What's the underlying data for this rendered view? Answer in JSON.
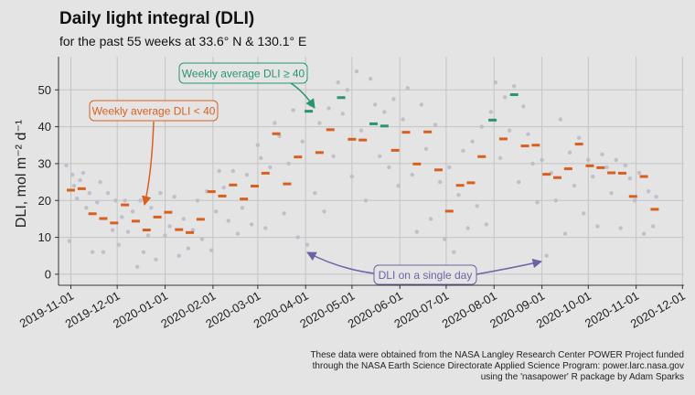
{
  "chart_data": {
    "type": "scatter",
    "title": "Daily light integral (DLI)",
    "subtitle": "for the past 55 weeks at 33.6° N & 130.1° E",
    "ylabel": "DLI, mol m⁻² d⁻¹",
    "xlabel": "",
    "ylim": [
      -3,
      59
    ],
    "y_ticks": [
      0,
      10,
      20,
      30,
      40,
      50
    ],
    "x_range": [
      "2019-10-24",
      "2020-12-02"
    ],
    "x_ticks": [
      "2019-11-01",
      "2019-12-01",
      "2020-01-01",
      "2020-02-01",
      "2020-03-01",
      "2020-04-01",
      "2020-05-01",
      "2020-06-01",
      "2020-07-01",
      "2020-08-01",
      "2020-09-01",
      "2020-10-01",
      "2020-11-01",
      "2020-12-01"
    ],
    "grid": true,
    "threshold": 40,
    "colors": {
      "below": "#d95f1f",
      "above": "#2a9470",
      "points": "#b9b9c9",
      "single_day": "#6b63a5"
    },
    "annotations": {
      "below": "Weekly average DLI < 40",
      "above": "Weekly average DLI ≥ 40",
      "single_day": "DLI on a single day"
    },
    "caption": [
      "These data were obtained from the NASA Langley Research Center POWER Project funded",
      "through the NASA Earth Science Directorate Applied Science Program: power.larc.nasa.gov",
      "using the 'nasapower' R package by Adam Sparks"
    ],
    "weekly_series": {
      "name": "Weekly average DLI",
      "points": [
        {
          "x": "2019-11-01",
          "y": 22.8
        },
        {
          "x": "2019-11-08",
          "y": 23.2
        },
        {
          "x": "2019-11-15",
          "y": 16.4
        },
        {
          "x": "2019-11-22",
          "y": 15.1
        },
        {
          "x": "2019-11-29",
          "y": 13.9
        },
        {
          "x": "2019-12-06",
          "y": 18.8
        },
        {
          "x": "2019-12-13",
          "y": 14.4
        },
        {
          "x": "2019-12-20",
          "y": 12.0
        },
        {
          "x": "2019-12-27",
          "y": 15.5
        },
        {
          "x": "2020-01-03",
          "y": 16.8
        },
        {
          "x": "2020-01-10",
          "y": 12.1
        },
        {
          "x": "2020-01-17",
          "y": 11.3
        },
        {
          "x": "2020-01-24",
          "y": 14.9
        },
        {
          "x": "2020-01-31",
          "y": 22.4
        },
        {
          "x": "2020-02-07",
          "y": 21.2
        },
        {
          "x": "2020-02-14",
          "y": 24.2
        },
        {
          "x": "2020-02-21",
          "y": 20.4
        },
        {
          "x": "2020-02-28",
          "y": 23.9
        },
        {
          "x": "2020-03-06",
          "y": 27.4
        },
        {
          "x": "2020-03-13",
          "y": 38.1
        },
        {
          "x": "2020-03-20",
          "y": 24.5
        },
        {
          "x": "2020-03-27",
          "y": 31.8
        },
        {
          "x": "2020-04-03",
          "y": 44.2
        },
        {
          "x": "2020-04-10",
          "y": 33.0
        },
        {
          "x": "2020-04-17",
          "y": 39.2
        },
        {
          "x": "2020-04-24",
          "y": 47.9
        },
        {
          "x": "2020-05-01",
          "y": 36.6
        },
        {
          "x": "2020-05-08",
          "y": 36.4
        },
        {
          "x": "2020-05-15",
          "y": 40.8
        },
        {
          "x": "2020-05-22",
          "y": 40.2
        },
        {
          "x": "2020-05-29",
          "y": 33.6
        },
        {
          "x": "2020-06-05",
          "y": 38.5
        },
        {
          "x": "2020-06-12",
          "y": 29.9
        },
        {
          "x": "2020-06-19",
          "y": 38.6
        },
        {
          "x": "2020-06-26",
          "y": 28.3
        },
        {
          "x": "2020-07-03",
          "y": 17.1
        },
        {
          "x": "2020-07-10",
          "y": 24.1
        },
        {
          "x": "2020-07-17",
          "y": 24.8
        },
        {
          "x": "2020-07-24",
          "y": 31.9
        },
        {
          "x": "2020-07-31",
          "y": 41.8
        },
        {
          "x": "2020-08-07",
          "y": 36.7
        },
        {
          "x": "2020-08-14",
          "y": 48.7
        },
        {
          "x": "2020-08-21",
          "y": 34.8
        },
        {
          "x": "2020-08-28",
          "y": 35.0
        },
        {
          "x": "2020-09-04",
          "y": 27.1
        },
        {
          "x": "2020-09-11",
          "y": 26.2
        },
        {
          "x": "2020-09-18",
          "y": 28.6
        },
        {
          "x": "2020-09-25",
          "y": 35.3
        },
        {
          "x": "2020-10-02",
          "y": 29.4
        },
        {
          "x": "2020-10-09",
          "y": 28.9
        },
        {
          "x": "2020-10-16",
          "y": 27.5
        },
        {
          "x": "2020-10-23",
          "y": 27.4
        },
        {
          "x": "2020-10-30",
          "y": 21.1
        },
        {
          "x": "2020-11-06",
          "y": 26.5
        },
        {
          "x": "2020-11-13",
          "y": 17.6
        }
      ]
    },
    "daily_series": {
      "name": "DLI on a single day",
      "points": [
        {
          "x": "2019-10-29",
          "y": 29.5
        },
        {
          "x": "2019-10-31",
          "y": 9.0
        },
        {
          "x": "2019-11-02",
          "y": 27.0
        },
        {
          "x": "2019-11-03",
          "y": 24.0
        },
        {
          "x": "2019-11-05",
          "y": 20.5
        },
        {
          "x": "2019-11-07",
          "y": 25.5
        },
        {
          "x": "2019-11-09",
          "y": 27.5
        },
        {
          "x": "2019-11-11",
          "y": 18.0
        },
        {
          "x": "2019-11-13",
          "y": 22.0
        },
        {
          "x": "2019-11-15",
          "y": 6.0
        },
        {
          "x": "2019-11-18",
          "y": 19.5
        },
        {
          "x": "2019-11-20",
          "y": 25.0
        },
        {
          "x": "2019-11-22",
          "y": 6.0
        },
        {
          "x": "2019-11-25",
          "y": 22.0
        },
        {
          "x": "2019-11-28",
          "y": 12.0
        },
        {
          "x": "2019-11-30",
          "y": 20.0
        },
        {
          "x": "2019-12-02",
          "y": 8.0
        },
        {
          "x": "2019-12-04",
          "y": 15.5
        },
        {
          "x": "2019-12-06",
          "y": 20.0
        },
        {
          "x": "2019-12-08",
          "y": 11.5
        },
        {
          "x": "2019-12-11",
          "y": 17.0
        },
        {
          "x": "2019-12-14",
          "y": 2.0
        },
        {
          "x": "2019-12-16",
          "y": 20.0
        },
        {
          "x": "2019-12-18",
          "y": 6.0
        },
        {
          "x": "2019-12-21",
          "y": 10.5
        },
        {
          "x": "2019-12-23",
          "y": 18.0
        },
        {
          "x": "2019-12-26",
          "y": 4.0
        },
        {
          "x": "2019-12-29",
          "y": 22.0
        },
        {
          "x": "2020-01-01",
          "y": 10.5
        },
        {
          "x": "2020-01-04",
          "y": 13.0
        },
        {
          "x": "2020-01-07",
          "y": 21.0
        },
        {
          "x": "2020-01-10",
          "y": 5.0
        },
        {
          "x": "2020-01-13",
          "y": 15.0
        },
        {
          "x": "2020-01-16",
          "y": 7.0
        },
        {
          "x": "2020-01-19",
          "y": 12.0
        },
        {
          "x": "2020-01-22",
          "y": 20.0
        },
        {
          "x": "2020-01-25",
          "y": 9.5
        },
        {
          "x": "2020-01-28",
          "y": 22.5
        },
        {
          "x": "2020-01-31",
          "y": 6.5
        },
        {
          "x": "2020-02-03",
          "y": 17.0
        },
        {
          "x": "2020-02-05",
          "y": 28.0
        },
        {
          "x": "2020-02-08",
          "y": 23.5
        },
        {
          "x": "2020-02-11",
          "y": 14.5
        },
        {
          "x": "2020-02-14",
          "y": 28.0
        },
        {
          "x": "2020-02-17",
          "y": 11.0
        },
        {
          "x": "2020-02-20",
          "y": 18.0
        },
        {
          "x": "2020-02-23",
          "y": 27.0
        },
        {
          "x": "2020-02-26",
          "y": 13.5
        },
        {
          "x": "2020-03-01",
          "y": 35.0
        },
        {
          "x": "2020-03-03",
          "y": 31.5
        },
        {
          "x": "2020-03-06",
          "y": 12.5
        },
        {
          "x": "2020-03-09",
          "y": 29.0
        },
        {
          "x": "2020-03-12",
          "y": 41.0
        },
        {
          "x": "2020-03-15",
          "y": 37.5
        },
        {
          "x": "2020-03-18",
          "y": 16.5
        },
        {
          "x": "2020-03-21",
          "y": 30.0
        },
        {
          "x": "2020-03-24",
          "y": 44.5
        },
        {
          "x": "2020-03-27",
          "y": 10.0
        },
        {
          "x": "2020-03-30",
          "y": 36.0
        },
        {
          "x": "2020-04-02",
          "y": 8.0
        },
        {
          "x": "2020-04-04",
          "y": 46.0
        },
        {
          "x": "2020-04-07",
          "y": 22.0
        },
        {
          "x": "2020-04-10",
          "y": 41.0
        },
        {
          "x": "2020-04-13",
          "y": 17.0
        },
        {
          "x": "2020-04-16",
          "y": 45.0
        },
        {
          "x": "2020-04-19",
          "y": 32.0
        },
        {
          "x": "2020-04-22",
          "y": 52.0
        },
        {
          "x": "2020-04-25",
          "y": 43.5
        },
        {
          "x": "2020-04-28",
          "y": 50.0
        },
        {
          "x": "2020-05-01",
          "y": 26.5
        },
        {
          "x": "2020-05-04",
          "y": 55.0
        },
        {
          "x": "2020-05-07",
          "y": 39.0
        },
        {
          "x": "2020-05-10",
          "y": 20.0
        },
        {
          "x": "2020-05-13",
          "y": 53.0
        },
        {
          "x": "2020-05-16",
          "y": 46.0
        },
        {
          "x": "2020-05-19",
          "y": 32.0
        },
        {
          "x": "2020-05-22",
          "y": 44.0
        },
        {
          "x": "2020-05-25",
          "y": 29.0
        },
        {
          "x": "2020-05-28",
          "y": 47.5
        },
        {
          "x": "2020-05-31",
          "y": 24.0
        },
        {
          "x": "2020-06-03",
          "y": 42.0
        },
        {
          "x": "2020-06-06",
          "y": 50.5
        },
        {
          "x": "2020-06-09",
          "y": 27.0
        },
        {
          "x": "2020-06-12",
          "y": 11.5
        },
        {
          "x": "2020-06-15",
          "y": 46.0
        },
        {
          "x": "2020-06-18",
          "y": 34.0
        },
        {
          "x": "2020-06-21",
          "y": 15.0
        },
        {
          "x": "2020-06-24",
          "y": 40.5
        },
        {
          "x": "2020-06-27",
          "y": 25.0
        },
        {
          "x": "2020-06-30",
          "y": 9.5
        },
        {
          "x": "2020-07-03",
          "y": 29.0
        },
        {
          "x": "2020-07-06",
          "y": 6.0
        },
        {
          "x": "2020-07-09",
          "y": 21.5
        },
        {
          "x": "2020-07-12",
          "y": 33.5
        },
        {
          "x": "2020-07-15",
          "y": 12.5
        },
        {
          "x": "2020-07-18",
          "y": 36.0
        },
        {
          "x": "2020-07-21",
          "y": 18.5
        },
        {
          "x": "2020-07-24",
          "y": 40.0
        },
        {
          "x": "2020-07-27",
          "y": 13.5
        },
        {
          "x": "2020-07-30",
          "y": 44.0
        },
        {
          "x": "2020-08-02",
          "y": 52.0
        },
        {
          "x": "2020-08-05",
          "y": 31.5
        },
        {
          "x": "2020-08-08",
          "y": 48.0
        },
        {
          "x": "2020-08-11",
          "y": 39.0
        },
        {
          "x": "2020-08-14",
          "y": 51.0
        },
        {
          "x": "2020-08-17",
          "y": 25.0
        },
        {
          "x": "2020-08-20",
          "y": 45.5
        },
        {
          "x": "2020-08-23",
          "y": 38.0
        },
        {
          "x": "2020-08-26",
          "y": 30.0
        },
        {
          "x": "2020-08-29",
          "y": 19.5
        },
        {
          "x": "2020-09-01",
          "y": 31.0
        },
        {
          "x": "2020-09-04",
          "y": 5.0
        },
        {
          "x": "2020-09-07",
          "y": 27.5
        },
        {
          "x": "2020-09-10",
          "y": 20.0
        },
        {
          "x": "2020-09-13",
          "y": 42.0
        },
        {
          "x": "2020-09-16",
          "y": 11.0
        },
        {
          "x": "2020-09-19",
          "y": 33.0
        },
        {
          "x": "2020-09-22",
          "y": 24.0
        },
        {
          "x": "2020-09-25",
          "y": 37.0
        },
        {
          "x": "2020-09-28",
          "y": 16.5
        },
        {
          "x": "2020-10-01",
          "y": 31.0
        },
        {
          "x": "2020-10-04",
          "y": 26.5
        },
        {
          "x": "2020-10-07",
          "y": 13.0
        },
        {
          "x": "2020-10-10",
          "y": 32.5
        },
        {
          "x": "2020-10-13",
          "y": 29.0
        },
        {
          "x": "2020-10-16",
          "y": 22.0
        },
        {
          "x": "2020-10-19",
          "y": 31.0
        },
        {
          "x": "2020-10-22",
          "y": 12.5
        },
        {
          "x": "2020-10-25",
          "y": 29.5
        },
        {
          "x": "2020-10-28",
          "y": 26.0
        },
        {
          "x": "2020-10-31",
          "y": 20.0
        },
        {
          "x": "2020-11-03",
          "y": 27.5
        },
        {
          "x": "2020-11-06",
          "y": 11.0
        },
        {
          "x": "2020-11-09",
          "y": 22.5
        },
        {
          "x": "2020-11-12",
          "y": 13.0
        },
        {
          "x": "2020-11-14",
          "y": 21.0
        }
      ]
    }
  }
}
